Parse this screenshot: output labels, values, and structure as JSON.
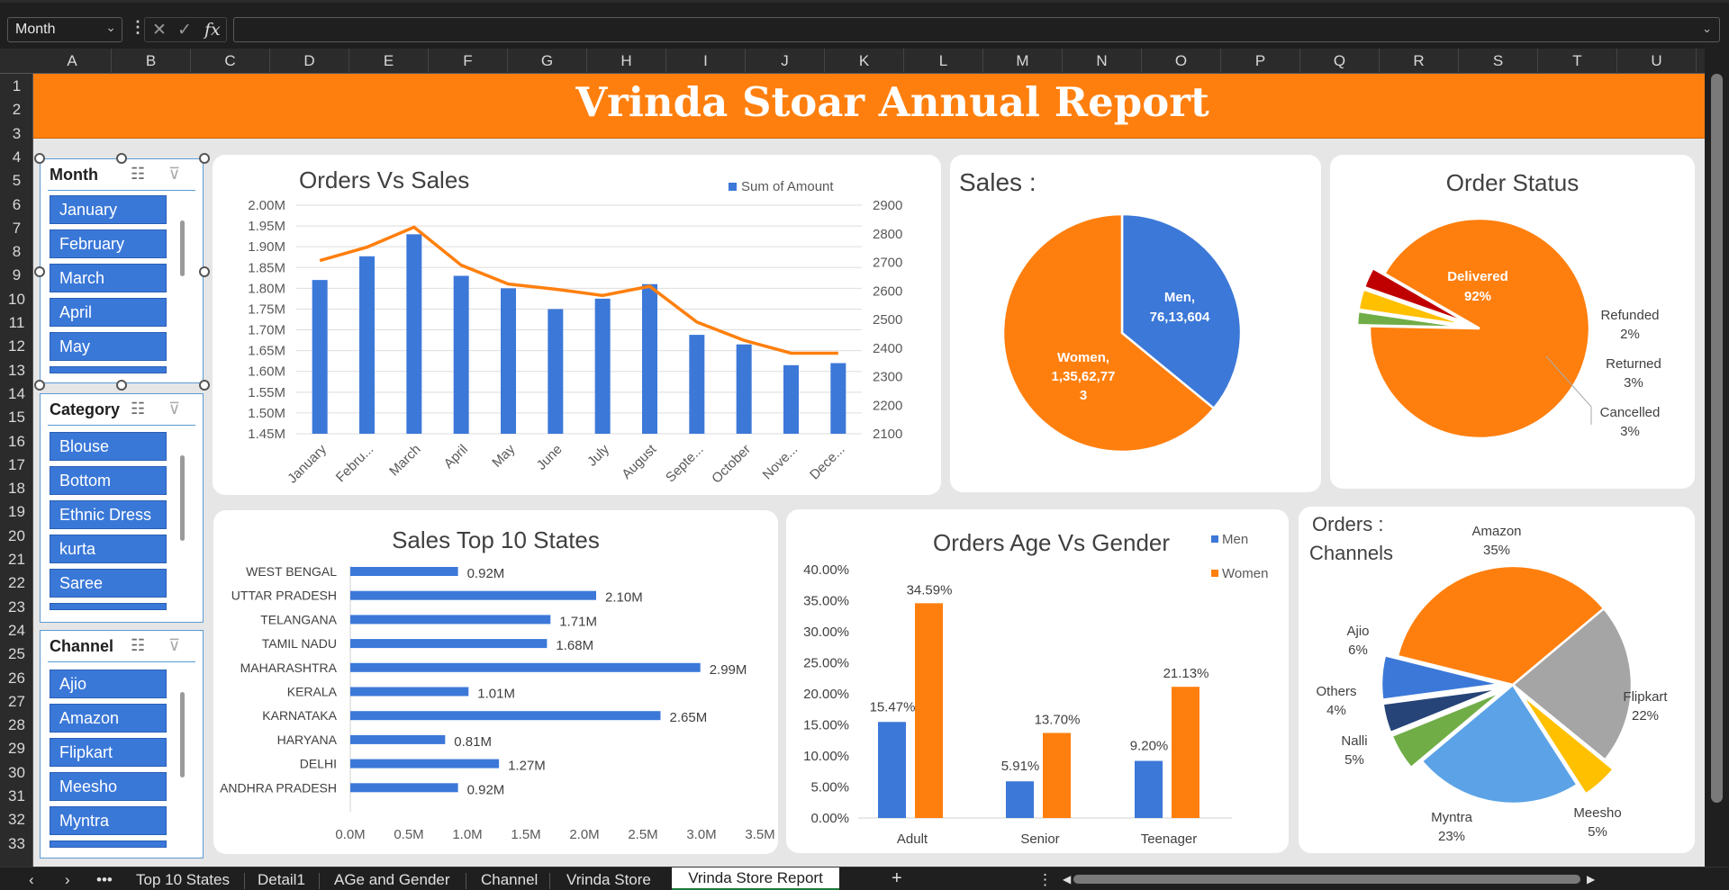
{
  "formula_bar": {
    "name_box": "Month",
    "fx": "fx",
    "cancel": "✕",
    "confirm": "✓",
    "value": ""
  },
  "columns": [
    "A",
    "B",
    "C",
    "D",
    "E",
    "F",
    "G",
    "H",
    "I",
    "J",
    "K",
    "L",
    "M",
    "N",
    "O",
    "P",
    "Q",
    "R",
    "S",
    "T",
    "U"
  ],
  "rows": [
    "1",
    "2",
    "3",
    "4",
    "5",
    "6",
    "7",
    "8",
    "9",
    "10",
    "11",
    "12",
    "13",
    "14",
    "15",
    "16",
    "17",
    "18",
    "19",
    "20",
    "21",
    "22",
    "23",
    "24",
    "25",
    "26",
    "27",
    "28",
    "29",
    "30",
    "31",
    "32",
    "33"
  ],
  "report_title": "Vrinda Stoar Annual Report",
  "slicers": {
    "month": {
      "title": "Month",
      "items": [
        "January",
        "February",
        "March",
        "April",
        "May"
      ]
    },
    "category": {
      "title": "Category",
      "items": [
        "Blouse",
        "Bottom",
        "Ethnic Dress",
        "kurta",
        "Saree"
      ]
    },
    "channel": {
      "title": "Channel",
      "items": [
        "Ajio",
        "Amazon",
        "Flipkart",
        "Meesho",
        "Myntra"
      ]
    }
  },
  "tabs": {
    "items": [
      "Top 10 States",
      "Detail1",
      "AGe and Gender",
      "Channel",
      "Vrinda Store"
    ],
    "active": "Vrinda Store Report",
    "add": "+",
    "more": "•••"
  },
  "colors": {
    "blue": "#3c78d8",
    "orange": "#ff7f0e",
    "banner": "#ff7f0e"
  },
  "chart_data": [
    {
      "id": "orders_vs_sales",
      "type": "bar",
      "title": "Orders Vs Sales",
      "categories": [
        "January",
        "Febru...",
        "March",
        "April",
        "May",
        "June",
        "July",
        "August",
        "Septe...",
        "October",
        "Nove...",
        "Dece..."
      ],
      "series": [
        {
          "name": "Sum of Amount",
          "type": "bar",
          "axis": "left",
          "values": [
            1.82,
            1.877,
            1.93,
            1.83,
            1.8,
            1.75,
            1.775,
            1.81,
            1.688,
            1.665,
            1.615,
            1.62
          ]
        },
        {
          "type": "line",
          "axis": "right",
          "values": [
            2706,
            2753,
            2823,
            2690,
            2624,
            2606,
            2584,
            2616,
            2491,
            2427,
            2382,
            2382
          ]
        }
      ],
      "y_left": {
        "ticks": [
          "2.00M",
          "1.95M",
          "1.90M",
          "1.85M",
          "1.80M",
          "1.75M",
          "1.70M",
          "1.65M",
          "1.60M",
          "1.55M",
          "1.50M",
          "1.45M"
        ],
        "range": [
          1.45,
          2.0
        ]
      },
      "y_right": {
        "ticks": [
          "2900",
          "2800",
          "2700",
          "2600",
          "2500",
          "2400",
          "2300",
          "2200",
          "2100"
        ],
        "range": [
          2100,
          2900
        ]
      },
      "legend": "top-right",
      "grid": true
    },
    {
      "id": "sales_gender",
      "type": "pie",
      "title": "Sales :",
      "slices": [
        {
          "name": "Men",
          "label": "Men,",
          "value_label": "76,13,604",
          "value": 7613604
        },
        {
          "name": "Women",
          "label": "Women,",
          "value_label": "1,35,62,77",
          "value_label_2": "3",
          "value": 13562773
        }
      ]
    },
    {
      "id": "order_status",
      "type": "pie",
      "title": "Order Status",
      "slices": [
        {
          "name": "Delivered",
          "value": 92,
          "pct": "92%"
        },
        {
          "name": "Refunded",
          "value": 2,
          "pct": "2%"
        },
        {
          "name": "Returned",
          "value": 3,
          "pct": "3%"
        },
        {
          "name": "Cancelled",
          "value": 3,
          "pct": "3%"
        }
      ]
    },
    {
      "id": "top_states",
      "type": "bar",
      "orientation": "horizontal",
      "title": "Sales Top 10 States",
      "categories": [
        "WEST BENGAL",
        "UTTAR PRADESH",
        "TELANGANA",
        "TAMIL NADU",
        "MAHARASHTRA",
        "KERALA",
        "KARNATAKA",
        "HARYANA",
        "DELHI",
        "ANDHRA PRADESH"
      ],
      "values": [
        0.92,
        2.1,
        1.71,
        1.68,
        2.99,
        1.01,
        2.65,
        0.81,
        1.27,
        0.92
      ],
      "value_labels": [
        "0.92M",
        "2.10M",
        "1.71M",
        "1.68M",
        "2.99M",
        "1.01M",
        "2.65M",
        "0.81M",
        "1.27M",
        "0.92M"
      ],
      "x_ticks": [
        "0.0M",
        "0.5M",
        "1.0M",
        "1.5M",
        "2.0M",
        "2.5M",
        "3.0M",
        "3.5M"
      ],
      "xlim": [
        0,
        3.5
      ]
    },
    {
      "id": "age_gender",
      "type": "bar",
      "title": "Orders Age Vs Gender",
      "categories": [
        "Adult",
        "Senior",
        "Teenager"
      ],
      "series": [
        {
          "name": "Men",
          "values": [
            15.47,
            5.91,
            9.2
          ],
          "labels": [
            "15.47%",
            "5.91%",
            "9.20%"
          ]
        },
        {
          "name": "Women",
          "values": [
            34.59,
            13.7,
            21.13
          ],
          "labels": [
            "34.59%",
            "13.70%",
            "21.13%"
          ]
        }
      ],
      "y_ticks": [
        "40.00%",
        "35.00%",
        "30.00%",
        "25.00%",
        "20.00%",
        "15.00%",
        "10.00%",
        "5.00%",
        "0.00%"
      ],
      "ylim": [
        0,
        40
      ],
      "legend": "top-right"
    },
    {
      "id": "channels",
      "type": "pie",
      "title": "Orders :",
      "title_2": "Channels",
      "slices": [
        {
          "name": "Amazon",
          "value": 35,
          "pct": "35%"
        },
        {
          "name": "Flipkart",
          "value": 22,
          "pct": "22%"
        },
        {
          "name": "Meesho",
          "value": 5,
          "pct": "5%"
        },
        {
          "name": "Myntra",
          "value": 23,
          "pct": "23%"
        },
        {
          "name": "Nalli",
          "value": 5,
          "pct": "5%"
        },
        {
          "name": "Others",
          "value": 4,
          "pct": "4%"
        },
        {
          "name": "Ajio",
          "value": 6,
          "pct": "6%"
        }
      ]
    }
  ]
}
